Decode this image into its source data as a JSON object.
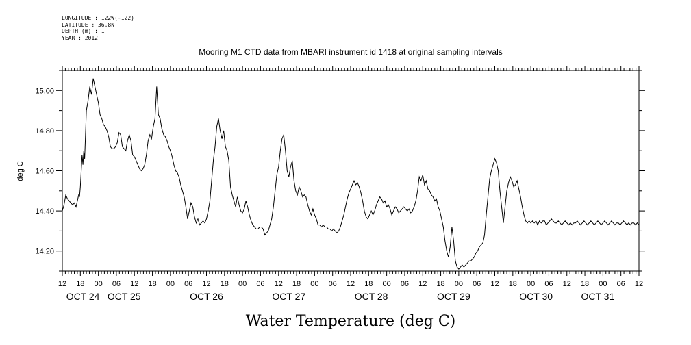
{
  "header": {
    "lines": [
      "LONGITUDE : 122W(-122)",
      "LATITUDE : 36.8N",
      "DEPTH (m) : 1",
      "YEAR : 2012"
    ]
  },
  "chart_data": {
    "type": "line",
    "title": "Mooring M1 CTD data from MBARI instrument id 1418 at original sampling intervals",
    "xlabel": "Water Temperature (deg C)",
    "ylabel": "deg C",
    "xlim": [
      "OCT 23 12:00",
      "OCT 31 12:00"
    ],
    "ylim": [
      14.1,
      15.1
    ],
    "yticks": [
      14.2,
      14.4,
      14.6,
      14.8,
      15.0
    ],
    "ytick_labels": [
      "14.20",
      "14.40",
      "14.60",
      "14.80",
      "15.00"
    ],
    "hour_tick_labels": [
      "12",
      "18",
      "00",
      "06",
      "12",
      "18",
      "00",
      "06",
      "12",
      "18",
      "00",
      "06",
      "12",
      "18",
      "00",
      "06",
      "12",
      "18",
      "00",
      "06",
      "12",
      "18",
      "00",
      "06",
      "12",
      "18",
      "00",
      "06",
      "12",
      "18",
      "00",
      "06",
      "12"
    ],
    "day_labels": [
      "OCT 24",
      "OCT 25",
      "OCT 26",
      "OCT 27",
      "OCT 28",
      "OCT 29",
      "OCT 30",
      "OCT 31"
    ],
    "day_label_hours": [
      12,
      36,
      84,
      132,
      180,
      228,
      276,
      312
    ],
    "grid": false,
    "series": [
      {
        "color": "#000000",
        "x_hours_since_oct23_12": [
          0,
          1,
          2,
          3,
          4,
          5,
          6,
          7,
          8,
          9,
          9.5,
          10,
          10.5,
          11,
          11.5,
          12,
          12.5,
          13,
          14,
          15,
          16,
          17,
          18,
          19,
          20,
          21,
          22,
          23,
          24,
          25,
          26,
          27,
          28,
          29,
          30,
          31,
          32,
          33,
          34,
          35,
          36,
          37,
          38,
          39,
          40,
          41,
          42,
          43,
          44,
          45,
          46,
          47,
          48,
          49,
          50,
          51,
          52,
          53,
          54,
          55,
          56,
          57,
          58,
          59,
          60,
          61,
          62,
          63,
          64,
          65,
          66,
          67,
          68,
          69,
          70,
          71,
          72,
          73,
          74,
          75,
          76,
          77,
          78,
          79,
          80,
          81,
          82,
          83,
          84,
          85,
          86,
          87,
          88,
          89,
          90,
          91,
          92,
          93,
          94,
          95,
          96,
          97,
          98,
          99,
          100,
          101,
          102,
          103,
          104,
          105,
          106,
          107,
          108,
          109,
          110,
          111,
          112,
          113,
          114,
          115,
          116,
          117,
          118,
          119,
          120,
          121,
          122,
          123,
          124,
          125,
          126,
          127,
          128,
          129,
          130,
          131,
          132,
          133,
          134,
          135,
          136,
          137,
          138,
          139,
          140,
          141,
          142,
          143,
          144,
          145,
          146,
          147,
          148,
          149,
          150,
          151,
          152,
          153,
          154,
          155,
          156,
          157,
          158,
          159,
          160,
          161,
          162,
          163,
          164,
          165,
          166,
          167,
          168,
          169,
          170,
          171,
          172,
          173,
          174,
          175,
          176,
          177,
          178,
          179,
          180,
          181,
          182,
          183,
          184,
          185,
          186,
          187,
          188,
          189,
          190,
          191,
          192,
          193,
          194,
          195,
          196,
          197,
          198,
          199,
          200,
          201,
          202,
          203,
          204,
          205,
          206,
          207,
          208,
          209,
          210,
          211,
          212,
          213,
          214,
          215,
          216,
          217,
          218,
          219,
          220,
          221,
          222,
          223,
          224,
          225,
          226,
          227,
          228,
          229,
          230,
          231,
          232,
          233,
          234,
          235,
          236,
          237,
          238,
          239,
          240,
          241,
          242,
          243,
          244,
          245,
          246,
          247,
          248,
          249,
          250,
          251,
          252,
          253,
          254,
          255,
          256,
          257,
          258,
          259,
          260,
          261,
          262,
          263,
          264,
          265,
          266,
          267,
          268,
          269,
          270,
          271,
          272,
          273,
          274,
          275,
          276,
          277,
          278,
          279,
          280,
          281,
          282,
          283,
          284,
          285,
          286,
          287,
          288,
          289,
          290,
          291,
          292,
          293,
          294,
          295,
          296,
          297,
          298,
          299,
          300,
          301,
          302,
          303,
          304,
          305,
          306,
          307,
          308,
          309,
          310,
          311,
          312,
          313,
          314,
          315,
          316,
          317,
          318,
          319,
          320,
          321,
          322,
          323,
          324,
          325,
          326,
          327,
          328,
          329,
          330,
          331,
          332,
          333,
          334,
          335,
          336
        ],
        "y": [
          14.4,
          14.43,
          14.48,
          14.46,
          14.45,
          14.44,
          14.43,
          14.44,
          14.42,
          14.46,
          14.48,
          14.47,
          14.52,
          14.6,
          14.68,
          14.63,
          14.7,
          14.66,
          14.9,
          14.95,
          15.02,
          14.98,
          15.06,
          15.02,
          14.98,
          14.94,
          14.88,
          14.86,
          14.83,
          14.82,
          14.8,
          14.77,
          14.72,
          14.71,
          14.71,
          14.72,
          14.74,
          14.79,
          14.78,
          14.72,
          14.71,
          14.7,
          14.75,
          14.78,
          14.75,
          14.68,
          14.67,
          14.65,
          14.63,
          14.61,
          14.6,
          14.61,
          14.63,
          14.68,
          14.75,
          14.78,
          14.76,
          14.82,
          14.86,
          15.02,
          14.88,
          14.86,
          14.81,
          14.78,
          14.77,
          14.75,
          14.72,
          14.7,
          14.67,
          14.63,
          14.6,
          14.59,
          14.57,
          14.53,
          14.5,
          14.47,
          14.42,
          14.36,
          14.4,
          14.44,
          14.42,
          14.37,
          14.34,
          14.36,
          14.33,
          14.34,
          14.35,
          14.34,
          14.36,
          14.4,
          14.45,
          14.55,
          14.65,
          14.72,
          14.82,
          14.86,
          14.8,
          14.76,
          14.8,
          14.72,
          14.7,
          14.65,
          14.52,
          14.48,
          14.45,
          14.42,
          14.47,
          14.43,
          14.4,
          14.39,
          14.41,
          14.45,
          14.42,
          14.38,
          14.35,
          14.33,
          14.32,
          14.31,
          14.31,
          14.32,
          14.32,
          14.31,
          14.28,
          14.29,
          14.3,
          14.33,
          14.36,
          14.42,
          14.5,
          14.58,
          14.62,
          14.7,
          14.76,
          14.78,
          14.7,
          14.6,
          14.57,
          14.62,
          14.65,
          14.55,
          14.5,
          14.48,
          14.52,
          14.5,
          14.47,
          14.48,
          14.47,
          14.43,
          14.4,
          14.38,
          14.41,
          14.38,
          14.36,
          14.33,
          14.33,
          14.32,
          14.33,
          14.32,
          14.32,
          14.31,
          14.31,
          14.3,
          14.31,
          14.3,
          14.29,
          14.3,
          14.32,
          14.35,
          14.38,
          14.42,
          14.46,
          14.49,
          14.51,
          14.53,
          14.55,
          14.53,
          14.54,
          14.52,
          14.49,
          14.45,
          14.4,
          14.37,
          14.36,
          14.38,
          14.4,
          14.38,
          14.4,
          14.43,
          14.45,
          14.47,
          14.46,
          14.44,
          14.45,
          14.42,
          14.43,
          14.41,
          14.38,
          14.4,
          14.42,
          14.41,
          14.39,
          14.4,
          14.41,
          14.42,
          14.41,
          14.4,
          14.41,
          14.39,
          14.4,
          14.42,
          14.45,
          14.5,
          14.57,
          14.55,
          14.58,
          14.53,
          14.55,
          14.51,
          14.5,
          14.48,
          14.47,
          14.45,
          14.46,
          14.42,
          14.4,
          14.36,
          14.32,
          14.25,
          14.2,
          14.17,
          14.22,
          14.32,
          14.25,
          14.15,
          14.12,
          14.11,
          14.12,
          14.13,
          14.12,
          14.13,
          14.14,
          14.15,
          14.15,
          14.16,
          14.17,
          14.19,
          14.2,
          14.22,
          14.23,
          14.24,
          14.28,
          14.38,
          14.47,
          14.56,
          14.6,
          14.63,
          14.66,
          14.64,
          14.6,
          14.5,
          14.42,
          14.34,
          14.42,
          14.5,
          14.54,
          14.57,
          14.55,
          14.52,
          14.53,
          14.55,
          14.51,
          14.47,
          14.42,
          14.38,
          14.35,
          14.34,
          14.35,
          14.34,
          14.35,
          14.34,
          14.35,
          14.33,
          14.35,
          14.34,
          14.35,
          14.35,
          14.33,
          14.34,
          14.35,
          14.36,
          14.35,
          14.34,
          14.34,
          14.35,
          14.34,
          14.33,
          14.34,
          14.35,
          14.34,
          14.33,
          14.34,
          14.33,
          14.34,
          14.34,
          14.35,
          14.34,
          14.33,
          14.34,
          14.35,
          14.34,
          14.33,
          14.34,
          14.35,
          14.34,
          14.33,
          14.34,
          14.35,
          14.34,
          14.33,
          14.34,
          14.35,
          14.34,
          14.33,
          14.34,
          14.35,
          14.34,
          14.33,
          14.34,
          14.34,
          14.33,
          14.34,
          14.35,
          14.34,
          14.33,
          14.34,
          14.33,
          14.34,
          14.34,
          14.33,
          14.34,
          14.33
        ]
      }
    ]
  }
}
